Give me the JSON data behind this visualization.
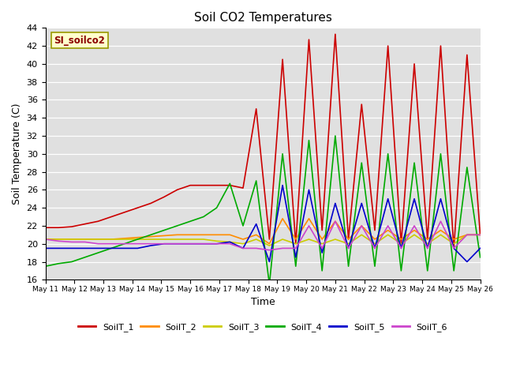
{
  "title": "Soil CO2 Temperatures",
  "xlabel": "Time",
  "ylabel": "Soil Temperature (C)",
  "ylim": [
    16,
    44
  ],
  "yticks": [
    16,
    18,
    20,
    22,
    24,
    26,
    28,
    30,
    32,
    34,
    36,
    38,
    40,
    42,
    44
  ],
  "annotation_text": "SI_soilco2",
  "annotation_color": "#8B0000",
  "annotation_bg": "#FFFFCC",
  "background_color": "#E0E0E0",
  "series": {
    "SoilT_1": {
      "color": "#CC0000",
      "y": [
        21.8,
        21.8,
        21.9,
        22.2,
        22.5,
        23.0,
        23.5,
        24.0,
        24.5,
        25.2,
        26.0,
        26.5,
        26.5,
        26.5,
        26.5,
        26.2,
        35.0,
        20.5,
        40.5,
        20.0,
        42.7,
        21.5,
        43.3,
        20.5,
        35.5,
        21.5,
        42.0,
        20.0,
        40.0,
        20.5,
        42.0,
        19.5,
        41.0,
        21.0
      ]
    },
    "SoilT_2": {
      "color": "#FF8C00",
      "y": [
        20.5,
        20.5,
        20.5,
        20.5,
        20.5,
        20.5,
        20.6,
        20.7,
        20.8,
        20.9,
        21.0,
        21.0,
        21.0,
        21.0,
        21.0,
        20.5,
        21.0,
        20.0,
        22.8,
        20.5,
        22.8,
        20.5,
        22.5,
        20.5,
        22.0,
        20.5,
        21.5,
        20.5,
        21.5,
        20.5,
        21.5,
        20.5,
        21.0,
        21.0
      ]
    },
    "SoilT_3": {
      "color": "#CCCC00",
      "y": [
        20.5,
        20.5,
        20.5,
        20.5,
        20.5,
        20.5,
        20.5,
        20.5,
        20.5,
        20.5,
        20.5,
        20.5,
        20.5,
        20.3,
        20.2,
        20.0,
        20.5,
        19.8,
        20.5,
        20.0,
        20.5,
        20.0,
        20.5,
        20.0,
        21.0,
        20.0,
        21.0,
        20.0,
        21.0,
        20.0,
        21.0,
        20.0,
        21.0,
        21.0
      ]
    },
    "SoilT_4": {
      "color": "#00AA00",
      "y": [
        17.5,
        17.8,
        18.0,
        18.5,
        19.0,
        19.5,
        20.0,
        20.5,
        21.0,
        21.5,
        22.0,
        22.5,
        23.0,
        24.0,
        26.7,
        22.0,
        27.0,
        15.5,
        30.0,
        17.5,
        31.5,
        17.0,
        32.0,
        17.5,
        29.0,
        17.5,
        30.0,
        17.0,
        29.0,
        17.0,
        30.0,
        17.0,
        28.5,
        18.5
      ]
    },
    "SoilT_5": {
      "color": "#0000CC",
      "y": [
        19.5,
        19.5,
        19.5,
        19.5,
        19.5,
        19.5,
        19.5,
        19.5,
        19.8,
        20.0,
        20.0,
        20.0,
        20.0,
        20.0,
        20.2,
        19.5,
        22.2,
        18.0,
        26.5,
        18.5,
        26.0,
        19.0,
        24.5,
        19.5,
        24.5,
        19.5,
        25.0,
        19.5,
        25.0,
        19.5,
        25.0,
        19.5,
        18.0,
        19.5
      ]
    },
    "SoilT_6": {
      "color": "#CC44CC",
      "y": [
        20.5,
        20.3,
        20.2,
        20.2,
        20.0,
        20.0,
        20.0,
        20.0,
        20.0,
        20.0,
        20.0,
        20.0,
        20.0,
        20.0,
        20.0,
        19.5,
        19.5,
        19.3,
        19.5,
        19.5,
        22.0,
        19.5,
        22.5,
        19.5,
        22.0,
        19.5,
        22.0,
        19.5,
        22.0,
        19.5,
        22.5,
        19.5,
        21.0,
        21.0
      ]
    }
  },
  "n_points": 34,
  "x_start": 1,
  "x_end": 16,
  "xtick_labels": [
    "May 11",
    "May 12",
    "May 13",
    "May 14",
    "May 15",
    "May 16",
    "May 17",
    "May 18",
    "May 19",
    "May 20",
    "May 21",
    "May 22",
    "May 23",
    "May 24",
    "May 25",
    "May 26"
  ],
  "xtick_positions": [
    1,
    2,
    3,
    4,
    5,
    6,
    7,
    8,
    9,
    10,
    11,
    12,
    13,
    14,
    15,
    16
  ]
}
